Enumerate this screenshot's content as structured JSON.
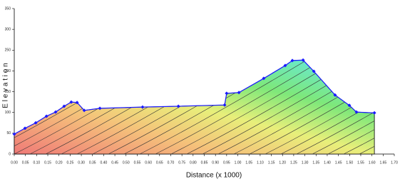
{
  "chart_data": {
    "type": "line",
    "xlabel": "Distance (x 1000)",
    "ylabel": "E l e v a t i o n",
    "x": [
      0,
      0.048,
      0.096,
      0.144,
      0.185,
      0.223,
      0.255,
      0.281,
      0.313,
      0.383,
      0.574,
      0.734,
      0.941,
      0.95,
      1.005,
      1.116,
      1.212,
      1.244,
      1.292,
      1.34,
      1.435,
      1.499,
      1.531,
      1.611
    ],
    "series": [
      {
        "color": "#1a1aff",
        "values": [
          48,
          62,
          75,
          91,
          101,
          115,
          125,
          124,
          105,
          110,
          113,
          115,
          118,
          146,
          148,
          182,
          213,
          225,
          226,
          199,
          142,
          117,
          101,
          99
        ]
      }
    ],
    "xlim": [
      0,
      1.7
    ],
    "ylim": [
      0,
      350
    ],
    "xticks": [
      {
        "value": 0,
        "label": "0.00"
      },
      {
        "value": 0.05,
        "label": "0.05"
      },
      {
        "value": 0.1,
        "label": "0.10"
      },
      {
        "value": 0.15,
        "label": "0.15"
      },
      {
        "value": 0.2,
        "label": "0.20"
      },
      {
        "value": 0.25,
        "label": "0.25"
      },
      {
        "value": 0.3,
        "label": "0.30"
      },
      {
        "value": 0.35,
        "label": "0.35"
      },
      {
        "value": 0.4,
        "label": "0.40"
      },
      {
        "value": 0.45,
        "label": "0.45"
      },
      {
        "value": 0.5,
        "label": "0.50"
      },
      {
        "value": 0.55,
        "label": "0.55"
      },
      {
        "value": 0.6,
        "label": "0.60"
      },
      {
        "value": 0.65,
        "label": "0.65"
      },
      {
        "value": 0.7,
        "label": "0.70"
      },
      {
        "value": 0.75,
        "label": "0.75"
      },
      {
        "value": 0.8,
        "label": "0.80"
      },
      {
        "value": 0.85,
        "label": "0.85"
      },
      {
        "value": 0.9,
        "label": "0.90"
      },
      {
        "value": 0.95,
        "label": "0.95"
      },
      {
        "value": 1,
        "label": "1.00"
      },
      {
        "value": 1.05,
        "label": "1.05"
      },
      {
        "value": 1.1,
        "label": "1.10"
      },
      {
        "value": 1.15,
        "label": "1.15"
      },
      {
        "value": 1.2,
        "label": "1.20"
      },
      {
        "value": 1.25,
        "label": "1.25"
      },
      {
        "value": 1.3,
        "label": "1.30"
      },
      {
        "value": 1.35,
        "label": "1.35"
      },
      {
        "value": 1.4,
        "label": "1.40"
      },
      {
        "value": 1.45,
        "label": "1.45"
      },
      {
        "value": 1.5,
        "label": "1.50"
      },
      {
        "value": 1.55,
        "label": "1.55"
      },
      {
        "value": 1.6,
        "label": "1.60"
      },
      {
        "value": 1.65,
        "label": "1.65"
      },
      {
        "value": 1.7,
        "label": "1.70"
      }
    ],
    "yticks": [
      0,
      50,
      100,
      150,
      200,
      250,
      300,
      350
    ]
  }
}
